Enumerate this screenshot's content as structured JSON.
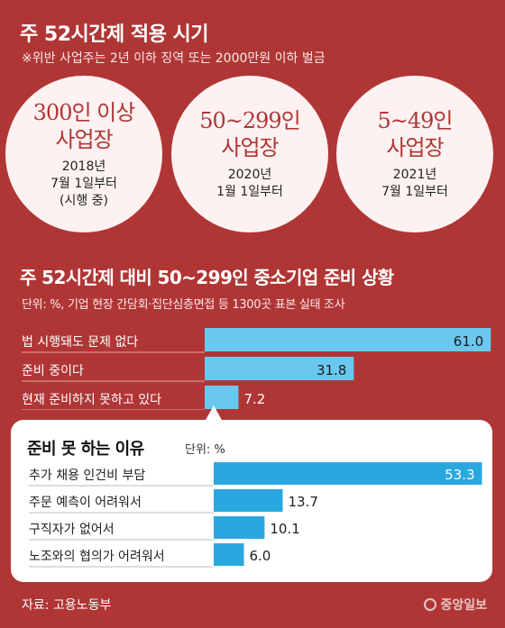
{
  "header": {
    "title": "주 52시간제 적용 시기",
    "note": "※위반 사업주는 2년 이하 징역 또는 2000만원 이하 벌금"
  },
  "schedule": [
    {
      "size_line1": "300인 이상",
      "size_line2": "사업장",
      "when": "2018년\n7월 1일부터\n(시행 중)"
    },
    {
      "size_line1": "50~299인",
      "size_line2": "사업장",
      "when": "2020년\n1월 1일부터"
    },
    {
      "size_line1": "5~49인",
      "size_line2": "사업장",
      "when": "2021년\n7월 1일부터"
    }
  ],
  "section2": {
    "title": "주 52시간제 대비 50~299인 중소기업 준비 상황",
    "note": "단위: %, 기업 현장 간담회·집단심층면접 등 1300곳 표본 실태 조사"
  },
  "panel": {
    "title": "준비 못 하는 이유",
    "unit": "단위: %"
  },
  "footer": {
    "source": "자료: 고용노동부",
    "logo": "중앙일보"
  },
  "colors": {
    "background": "#b03636",
    "bar": "#29a8e0",
    "bar_light": "#6ac8f0"
  },
  "chart_data": [
    {
      "type": "bar",
      "orientation": "horizontal",
      "title": "주 52시간제 대비 50~299인 중소기업 준비 상황",
      "categories": [
        "법 시행돼도 문제 없다",
        "준비 중이다",
        "현재 준비하지 못하고 있다"
      ],
      "values": [
        61.0,
        31.8,
        7.2
      ],
      "value_labels": [
        "61.0",
        "31.8",
        "7.2"
      ],
      "xlim": [
        0,
        65
      ],
      "grid": false
    },
    {
      "type": "bar",
      "orientation": "horizontal",
      "title": "준비 못 하는 이유",
      "categories": [
        "추가 채용 인건비 부담",
        "주문 예측이 어려워서",
        "구직자가 없어서",
        "노조와의 협의가 어려워서"
      ],
      "values": [
        53.3,
        13.7,
        10.1,
        6.0
      ],
      "value_labels": [
        "53.3",
        "13.7",
        "10.1",
        "6.0"
      ],
      "xlim": [
        0,
        55
      ],
      "grid": false
    }
  ]
}
